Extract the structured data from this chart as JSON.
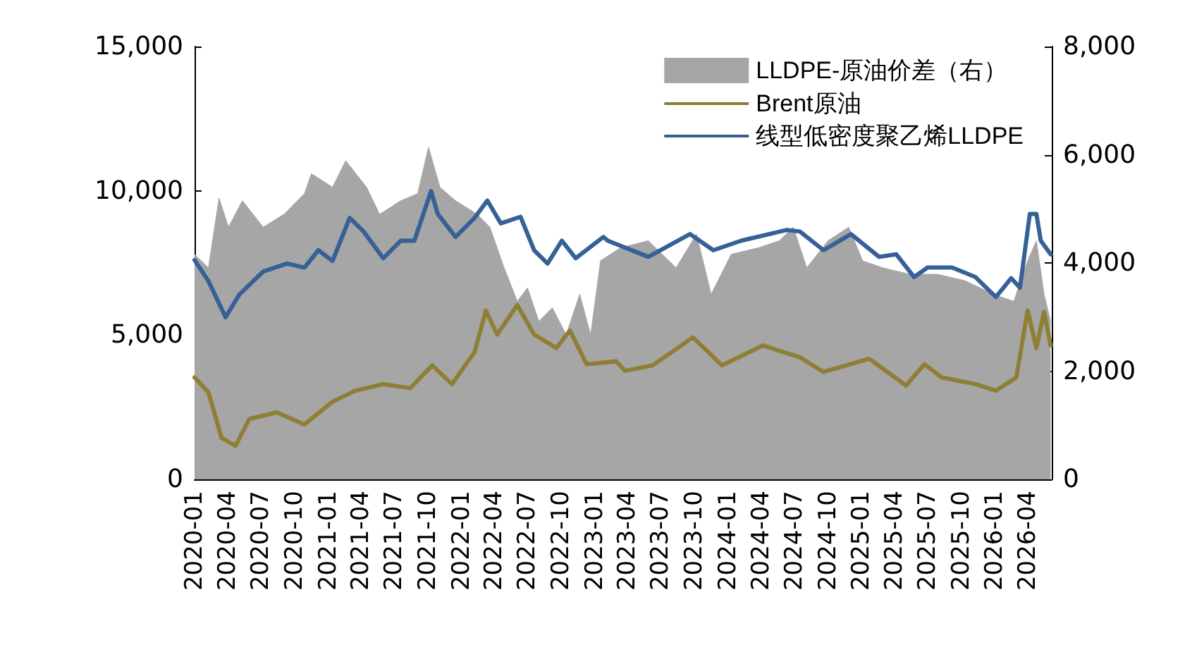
{
  "chart_data": {
    "type": "line",
    "legend": "top right",
    "grid": false,
    "marker": "none",
    "line_style": "solid",
    "xlim": [
      "2020-01-01",
      "2026-06-06"
    ],
    "xticks": [
      "2020-01",
      "2020-04",
      "2020-07",
      "2020-10",
      "2021-01",
      "2021-04",
      "2021-07",
      "2021-10",
      "2022-01",
      "2022-04",
      "2022-07",
      "2022-10",
      "2023-01",
      "2023-04",
      "2023-07",
      "2023-10",
      "2024-01",
      "2024-04",
      "2024-07",
      "2024-10",
      "2025-01",
      "2025-04",
      "2025-07",
      "2025-10",
      "2026-01",
      "2026-04"
    ],
    "ylim": [
      0,
      15000
    ],
    "yticks": [
      {
        "value": 0,
        "label": "0"
      },
      {
        "value": 5000,
        "label": "5,000"
      },
      {
        "value": 10000,
        "label": "10,000"
      },
      {
        "value": 15000,
        "label": "15,000"
      }
    ],
    "y2lim": [
      0,
      8000
    ],
    "y2ticks": [
      {
        "value": 0,
        "label": "0"
      },
      {
        "value": 2000,
        "label": "2,000"
      },
      {
        "value": 4000,
        "label": "4,000"
      },
      {
        "value": 6000,
        "label": "6,000"
      },
      {
        "value": 8000,
        "label": "8,000"
      }
    ],
    "series": [
      {
        "name": "LLDPE-原油价差（右）",
        "type": "area",
        "axis": "y2",
        "color": "#a6a6a6",
        "x": [
          "2020-01-01",
          "2020-02-08",
          "2020-03-08",
          "2020-04-03",
          "2020-05-11",
          "2020-07-07",
          "2020-09-02",
          "2020-10-28",
          "2020-11-16",
          "2021-01-13",
          "2021-02-18",
          "2021-04-16",
          "2021-05-22",
          "2021-07-19",
          "2021-09-03",
          "2021-10-03",
          "2021-11-03",
          "2021-12-16",
          "2022-02-13",
          "2022-03-20",
          "2022-04-28",
          "2022-06-03",
          "2022-07-01",
          "2022-08-01",
          "2022-09-07",
          "2022-10-15",
          "2022-11-21",
          "2022-12-21",
          "2023-01-17",
          "2023-03-13",
          "2023-05-28",
          "2023-08-12",
          "2023-10-07",
          "2023-11-16",
          "2024-01-10",
          "2024-03-25",
          "2024-05-21",
          "2024-06-28",
          "2024-08-04",
          "2024-10-01",
          "2024-11-27",
          "2025-01-04",
          "2025-02-28",
          "2025-05-13",
          "2025-07-28",
          "2025-10-12",
          "2025-12-28",
          "2026-02-22",
          "2026-04-01",
          "2026-04-25",
          "2026-05-16",
          "2026-06-03"
        ],
        "values": [
          4160,
          3910,
          5200,
          4660,
          5150,
          4660,
          4900,
          5280,
          5650,
          5400,
          5890,
          5400,
          4900,
          5150,
          5280,
          6140,
          5400,
          5150,
          4900,
          4660,
          3910,
          3290,
          3540,
          2920,
          3170,
          2670,
          3420,
          2670,
          4040,
          4280,
          4410,
          3910,
          4530,
          3420,
          4160,
          4280,
          4410,
          4660,
          3910,
          4410,
          4660,
          4040,
          3910,
          3790,
          3790,
          3670,
          3420,
          3290,
          4040,
          4410,
          3420,
          2920
        ]
      },
      {
        "name": "Brent原油",
        "color": "#8f7f36",
        "x": [
          "2020-01-01",
          "2020-02-08",
          "2020-03-15",
          "2020-04-22",
          "2020-05-30",
          "2020-08-13",
          "2020-10-28",
          "2021-01-13",
          "2021-03-16",
          "2021-06-01",
          "2021-08-14",
          "2021-10-13",
          "2021-12-06",
          "2022-02-06",
          "2022-03-09",
          "2022-04-09",
          "2022-06-03",
          "2022-07-19",
          "2022-09-18",
          "2022-10-25",
          "2022-12-10",
          "2023-03-01",
          "2023-03-25",
          "2023-06-09",
          "2023-09-27",
          "2023-12-16",
          "2024-04-06",
          "2024-07-16",
          "2024-09-19",
          "2025-01-22",
          "2025-05-03",
          "2025-06-22",
          "2025-08-09",
          "2025-11-09",
          "2026-01-04",
          "2026-03-01",
          "2026-04-01",
          "2026-04-25",
          "2026-05-16",
          "2026-06-03"
        ],
        "values": [
          3530,
          3020,
          1440,
          1160,
          2090,
          2320,
          1900,
          2690,
          3070,
          3300,
          3160,
          3950,
          3300,
          4410,
          5850,
          5020,
          6040,
          5020,
          4550,
          5160,
          3990,
          4090,
          3760,
          3950,
          4920,
          3950,
          4640,
          4230,
          3720,
          4180,
          3250,
          3990,
          3530,
          3300,
          3070,
          3530,
          5850,
          4550,
          5810,
          4640
        ]
      },
      {
        "name": "线型低密度聚乙烯LLDPE",
        "color": "#356196",
        "x": [
          "2020-01-01",
          "2020-02-08",
          "2020-03-26",
          "2020-05-03",
          "2020-07-07",
          "2020-09-10",
          "2020-10-28",
          "2020-12-05",
          "2021-01-13",
          "2021-03-01",
          "2021-04-08",
          "2021-06-01",
          "2021-07-19",
          "2021-08-25",
          "2021-10-10",
          "2021-10-28",
          "2021-12-16",
          "2022-02-06",
          "2022-03-13",
          "2022-04-19",
          "2022-06-12",
          "2022-07-19",
          "2022-08-25",
          "2022-10-03",
          "2022-11-10",
          "2023-01-25",
          "2023-02-06",
          "2023-05-28",
          "2023-09-19",
          "2023-11-22",
          "2024-02-06",
          "2024-06-09",
          "2024-07-16",
          "2024-09-19",
          "2024-12-03",
          "2025-02-18",
          "2025-04-06",
          "2025-05-25",
          "2025-07-01",
          "2025-09-06",
          "2025-11-09",
          "2026-01-04",
          "2026-02-15",
          "2026-03-11",
          "2026-04-07",
          "2026-04-25",
          "2026-05-07",
          "2026-06-03"
        ],
        "values": [
          7600,
          6870,
          5620,
          6410,
          7200,
          7480,
          7340,
          7940,
          7570,
          9060,
          8590,
          7660,
          8270,
          8270,
          9990,
          9200,
          8400,
          9060,
          9660,
          8870,
          9100,
          7940,
          7480,
          8270,
          7660,
          8400,
          8270,
          7710,
          8500,
          7940,
          8270,
          8640,
          8590,
          7940,
          8500,
          7710,
          7800,
          7010,
          7340,
          7340,
          7010,
          6320,
          6970,
          6640,
          9200,
          9200,
          8270,
          7800
        ]
      }
    ]
  }
}
